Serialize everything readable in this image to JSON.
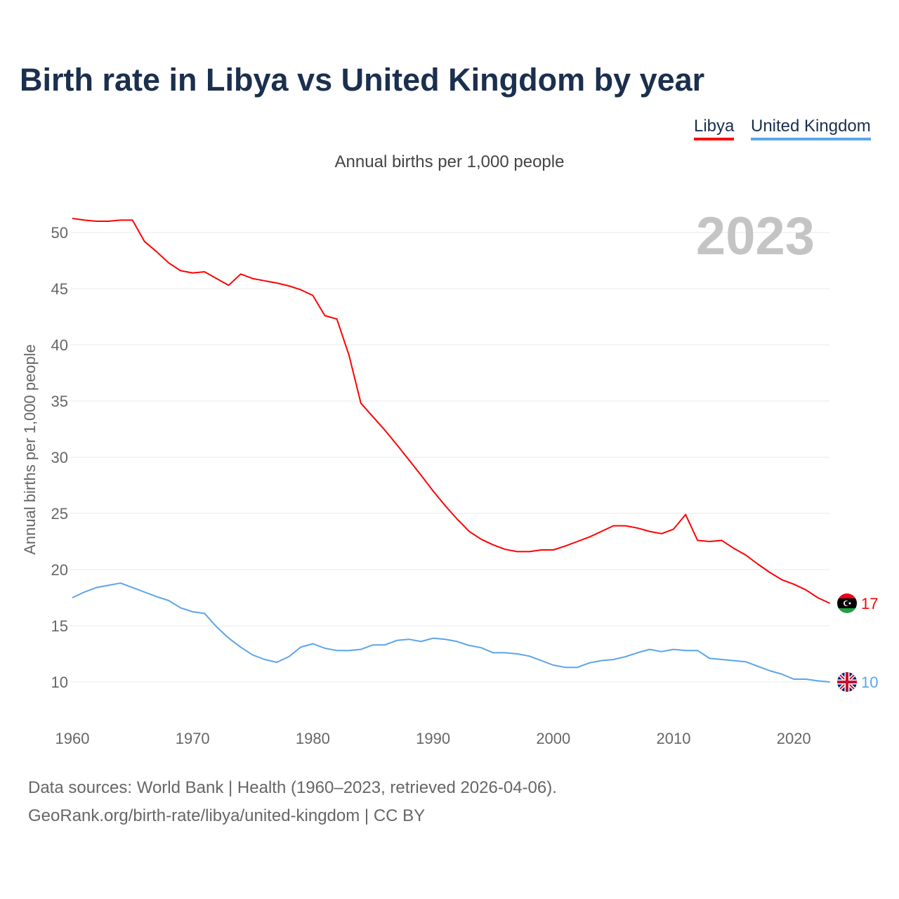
{
  "title": "Birth rate in Libya vs United Kingdom by year",
  "legend": [
    {
      "label": "Libya",
      "color": "#ff0000"
    },
    {
      "label": "United Kingdom",
      "color": "#5aa5ea"
    }
  ],
  "subtitle": "Annual births per 1,000 people",
  "year_label": "2023",
  "footer": {
    "line1": "Data sources: World Bank | Health (1960–2023, retrieved 2026-04-06).",
    "line2": "GeoRank.org/birth-rate/libya/united-kingdom | CC BY"
  },
  "chart_data": {
    "type": "line",
    "title": "Birth rate in Libya vs United Kingdom by year",
    "ylabel": "Annual births per 1,000 people",
    "xlabel": "",
    "xlim": [
      1960,
      2023
    ],
    "ylim": [
      7,
      53
    ],
    "yticks": [
      10,
      15,
      20,
      25,
      30,
      35,
      40,
      45,
      50
    ],
    "xticks": [
      1960,
      1970,
      1980,
      1990,
      2000,
      2010,
      2020
    ],
    "grid": true,
    "legend_position": "top-right",
    "x_start": 1960,
    "series": [
      {
        "name": "Libya",
        "color": "#ff0000",
        "end_label": "17",
        "values": [
          51.25,
          51.1,
          51.0,
          51.0,
          51.1,
          51.1,
          49.2,
          48.3,
          47.3,
          46.6,
          46.4,
          46.5,
          45.9,
          45.3,
          46.3,
          45.9,
          45.7,
          45.5,
          45.25,
          44.9,
          44.4,
          42.6,
          42.3,
          39.1,
          34.8,
          33.6,
          32.4,
          31.1,
          29.75,
          28.4,
          27.0,
          25.7,
          24.5,
          23.4,
          22.7,
          22.2,
          21.8,
          21.6,
          21.6,
          21.75,
          21.75,
          22.1,
          22.5,
          22.9,
          23.4,
          23.9,
          23.9,
          23.7,
          23.4,
          23.2,
          23.6,
          24.9,
          22.6,
          22.5,
          22.6,
          21.9,
          21.3,
          20.5,
          19.75,
          19.1,
          18.7,
          18.2,
          17.5,
          17.0
        ]
      },
      {
        "name": "United Kingdom",
        "color": "#5aa5ea",
        "end_label": "10",
        "values": [
          17.5,
          18.0,
          18.4,
          18.6,
          18.8,
          18.4,
          18.0,
          17.6,
          17.25,
          16.6,
          16.25,
          16.1,
          14.9,
          13.9,
          13.1,
          12.4,
          12.0,
          11.75,
          12.25,
          13.1,
          13.4,
          13.0,
          12.8,
          12.8,
          12.9,
          13.3,
          13.3,
          13.7,
          13.8,
          13.6,
          13.9,
          13.8,
          13.6,
          13.25,
          13.05,
          12.6,
          12.6,
          12.5,
          12.3,
          11.9,
          11.5,
          11.3,
          11.3,
          11.7,
          11.9,
          12.0,
          12.25,
          12.6,
          12.9,
          12.7,
          12.9,
          12.8,
          12.8,
          12.1,
          12.0,
          11.9,
          11.8,
          11.4,
          11.0,
          10.7,
          10.25,
          10.25,
          10.1,
          10.0
        ]
      }
    ]
  }
}
